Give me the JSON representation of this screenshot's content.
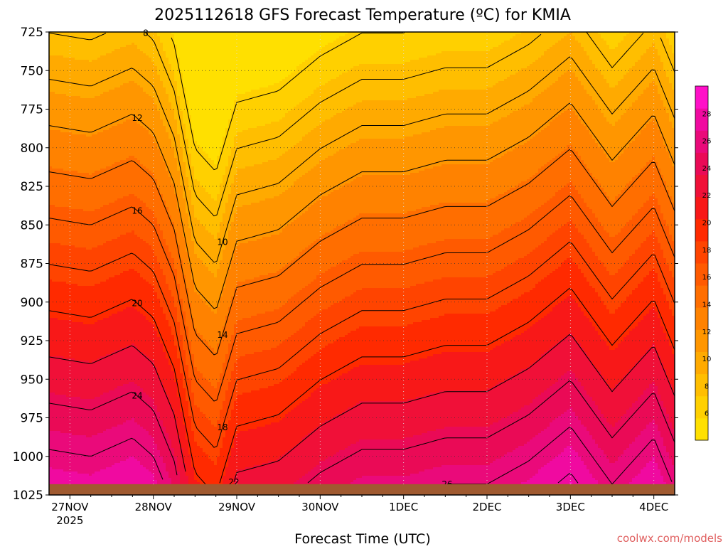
{
  "chart_data": {
    "type": "heatmap",
    "title": "2025112618 GFS Forecast Temperature (ºC) for KMIA",
    "xlabel": "Forecast Time (UTC)",
    "ylabel": "",
    "credit": "coolwx.com/models",
    "x_ticks": [
      "27NOV",
      "28NOV",
      "29NOV",
      "30NOV",
      "1DEC",
      "2DEC",
      "3DEC",
      "4DEC"
    ],
    "x_ticks_sub": [
      "2025",
      "",
      "",
      "",
      "",
      "",
      "",
      ""
    ],
    "x_range_days": [
      -0.25,
      7.25
    ],
    "y_ticks": [
      725,
      750,
      775,
      800,
      825,
      850,
      875,
      900,
      925,
      950,
      975,
      1000,
      1025
    ],
    "y_range_hpa": [
      725,
      1025
    ],
    "colorbar": {
      "ticks": [
        6,
        8,
        10,
        12,
        14,
        16,
        18,
        20,
        22,
        24,
        26,
        28
      ],
      "range": [
        4,
        30
      ],
      "colors": [
        "#ffe000",
        "#ffd000",
        "#ffbe00",
        "#ffaa00",
        "#ff9600",
        "#ff8200",
        "#ff6e00",
        "#ff5a00",
        "#ff4400",
        "#ff2a00",
        "#f81818",
        "#f01038",
        "#ea0a56",
        "#ea0a7a",
        "#f00aa0",
        "#ff10c8"
      ]
    },
    "terrain_color": "#a05a30",
    "surface_hpa": 1018,
    "lapse_rate_c_per_hpa": 0.0667,
    "series": [
      {
        "x": [
          -0.25,
          0.25,
          0.75,
          1.0,
          1.25,
          1.5,
          1.75,
          2.0,
          2.5,
          3.0,
          3.25,
          3.5,
          4.0,
          4.5,
          5.0,
          5.5,
          6.0,
          6.5,
          7.0,
          7.25
        ],
        "values": [
          27.5,
          27.2,
          28.0,
          27.2,
          25.0,
          20.5,
          19.5,
          22.5,
          23.0,
          24.5,
          25.0,
          25.5,
          25.5,
          26.0,
          26.0,
          27.0,
          28.5,
          26.0,
          28.0,
          25.8
        ]
      }
    ],
    "contour_labels": [
      "8",
      "10",
      "12",
      "14",
      "16",
      "18",
      "20",
      "22",
      "24",
      "26"
    ]
  }
}
